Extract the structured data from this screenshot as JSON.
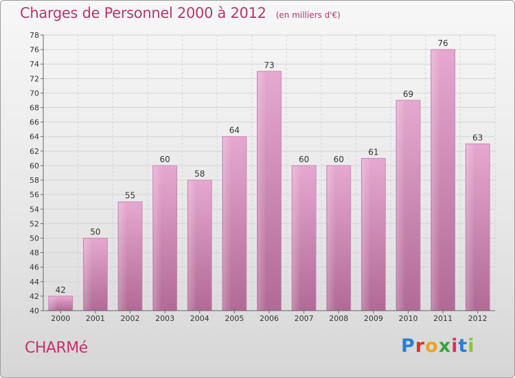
{
  "header": {
    "title": "Charges de Personnel 2000 à 2012",
    "subtitle": "(en milliers d'€)"
  },
  "footer": {
    "place": "CHARMé",
    "brand_letters": [
      {
        "char": "P",
        "color": "#2a7fd4"
      },
      {
        "char": "r",
        "color": "#e0302e"
      },
      {
        "char": "o",
        "color": "#f0a020"
      },
      {
        "char": "x",
        "color": "#3aa43a"
      },
      {
        "char": "i",
        "color": "#e03060"
      },
      {
        "char": "t",
        "color": "#2a7fd4"
      },
      {
        "char": "i",
        "color": "#8cc43a"
      }
    ]
  },
  "chart_data": {
    "type": "bar",
    "title": "Charges de Personnel 2000 à 2012",
    "subtitle": "(en milliers d'€)",
    "categories": [
      "2000",
      "2001",
      "2002",
      "2003",
      "2004",
      "2005",
      "2006",
      "2007",
      "2008",
      "2009",
      "2010",
      "2011",
      "2012"
    ],
    "values": [
      42,
      50,
      55,
      60,
      58,
      64,
      73,
      60,
      60,
      61,
      69,
      76,
      63
    ],
    "ylim": [
      40,
      78
    ],
    "yticks": [
      40,
      42,
      44,
      46,
      48,
      50,
      52,
      54,
      56,
      58,
      60,
      62,
      64,
      66,
      68,
      70,
      72,
      74,
      76,
      78
    ],
    "grid": true,
    "bar_color": "#d98bb8"
  }
}
